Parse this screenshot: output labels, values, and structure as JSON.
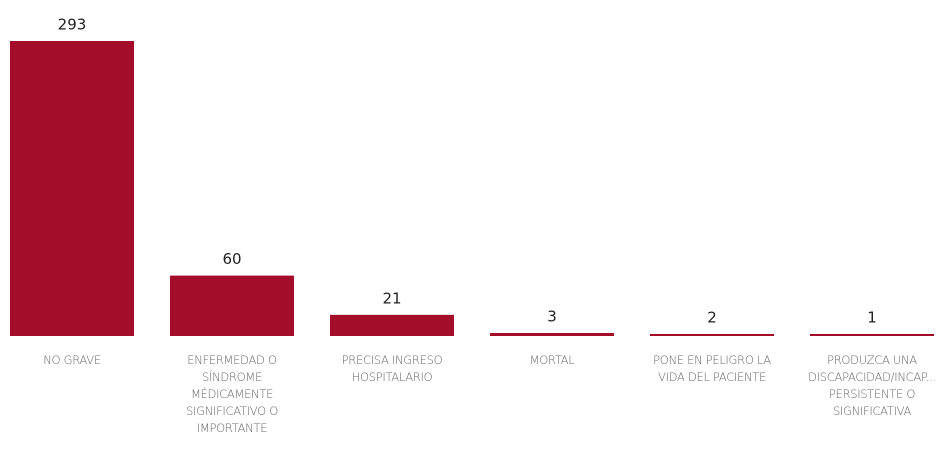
{
  "chart_data": {
    "type": "bar",
    "categories": [
      "NO GRAVE",
      "ENFERMEDAD O SÍNDROME MÉDICAMENTE SIGNIFICATIVO O IMPORTANTE",
      "PRECISA INGRESO HOSPITALARIO",
      "MORTAL",
      "PONE EN PELIGRO LA VIDA DEL PACIENTE",
      "PRODUZCA UNA DISCAPACIDAD/INCAP... PERSISTENTE O SIGNIFICATIVA"
    ],
    "values": [
      293,
      60,
      21,
      3,
      2,
      1
    ],
    "color": "#a30d2a"
  }
}
